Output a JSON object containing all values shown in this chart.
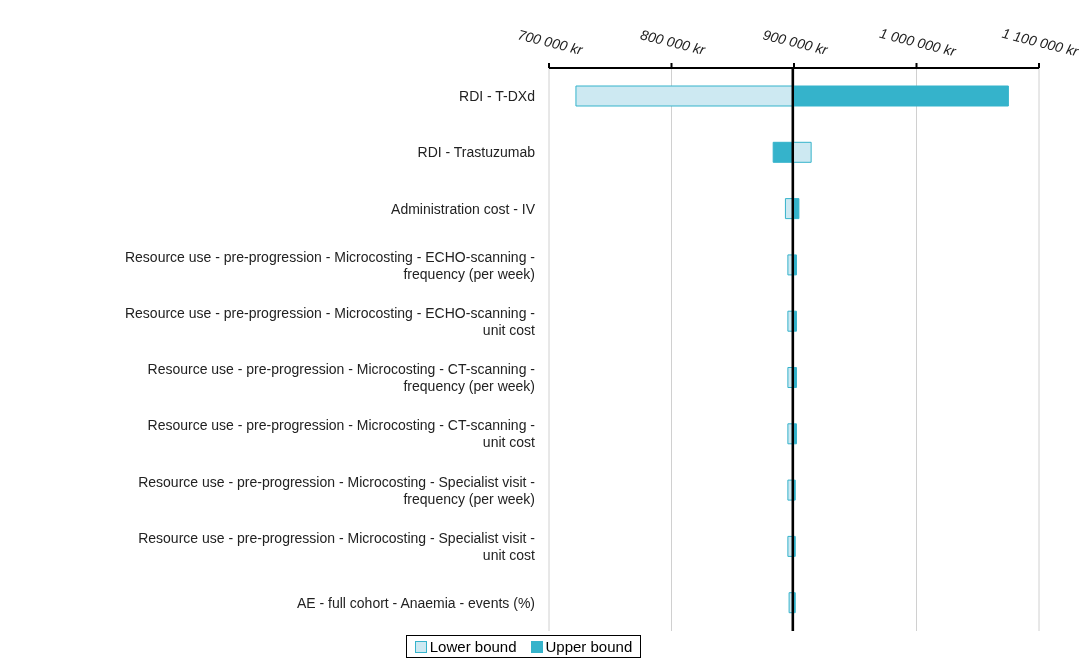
{
  "chart_data": {
    "type": "bar",
    "orientation": "horizontal",
    "categories": [
      "RDI - T-DXd",
      "RDI - Trastuzumab",
      "Administration cost - IV",
      "Resource use - pre-progression - Microcosting - ECHO-scanning - frequency (per week)",
      "Resource use - pre-progression - Microcosting - ECHO-scanning - unit cost",
      "Resource use - pre-progression - Microcosting - CT-scanning - frequency (per week)",
      "Resource use - pre-progression - Microcosting - CT-scanning - unit cost",
      "Resource use - pre-progression - Microcosting - Specialist visit - frequency (per week)",
      "Resource use - pre-progression - Microcosting - Specialist visit - unit cost",
      "AE - full cohort - Anaemia - events (%)"
    ],
    "series": [
      {
        "name": "Lower bound",
        "color": "#cde9f2",
        "base": [
          899000,
          899000,
          899000,
          899000,
          899000,
          899000,
          899000,
          899000,
          899000,
          899000
        ],
        "values": [
          -177000,
          15000,
          -6000,
          -4000,
          -4000,
          -4000,
          -4000,
          -4000,
          -4000,
          -3000
        ]
      },
      {
        "name": "Upper bound",
        "color": "#35b3cb",
        "base": [
          899000,
          899000,
          899000,
          899000,
          899000,
          899000,
          899000,
          899000,
          899000,
          899000
        ],
        "values": [
          176000,
          -16000,
          5000,
          3000,
          3000,
          3000,
          3000,
          2000,
          2000,
          2000
        ]
      }
    ],
    "xlim": [
      700000,
      1100000
    ],
    "xticks": [
      {
        "value": 700000,
        "label": "700 000 kr"
      },
      {
        "value": 800000,
        "label": "800 000 kr"
      },
      {
        "value": 900000,
        "label": "900 000 kr"
      },
      {
        "value": 1000000,
        "label": "1 000 000 kr"
      },
      {
        "value": 1100000,
        "label": "1 100 000 kr"
      }
    ],
    "ref_lines": [
      {
        "axis": "x",
        "value": 899000,
        "color": "#000000"
      }
    ],
    "grid": "x",
    "legend": "bottom"
  }
}
